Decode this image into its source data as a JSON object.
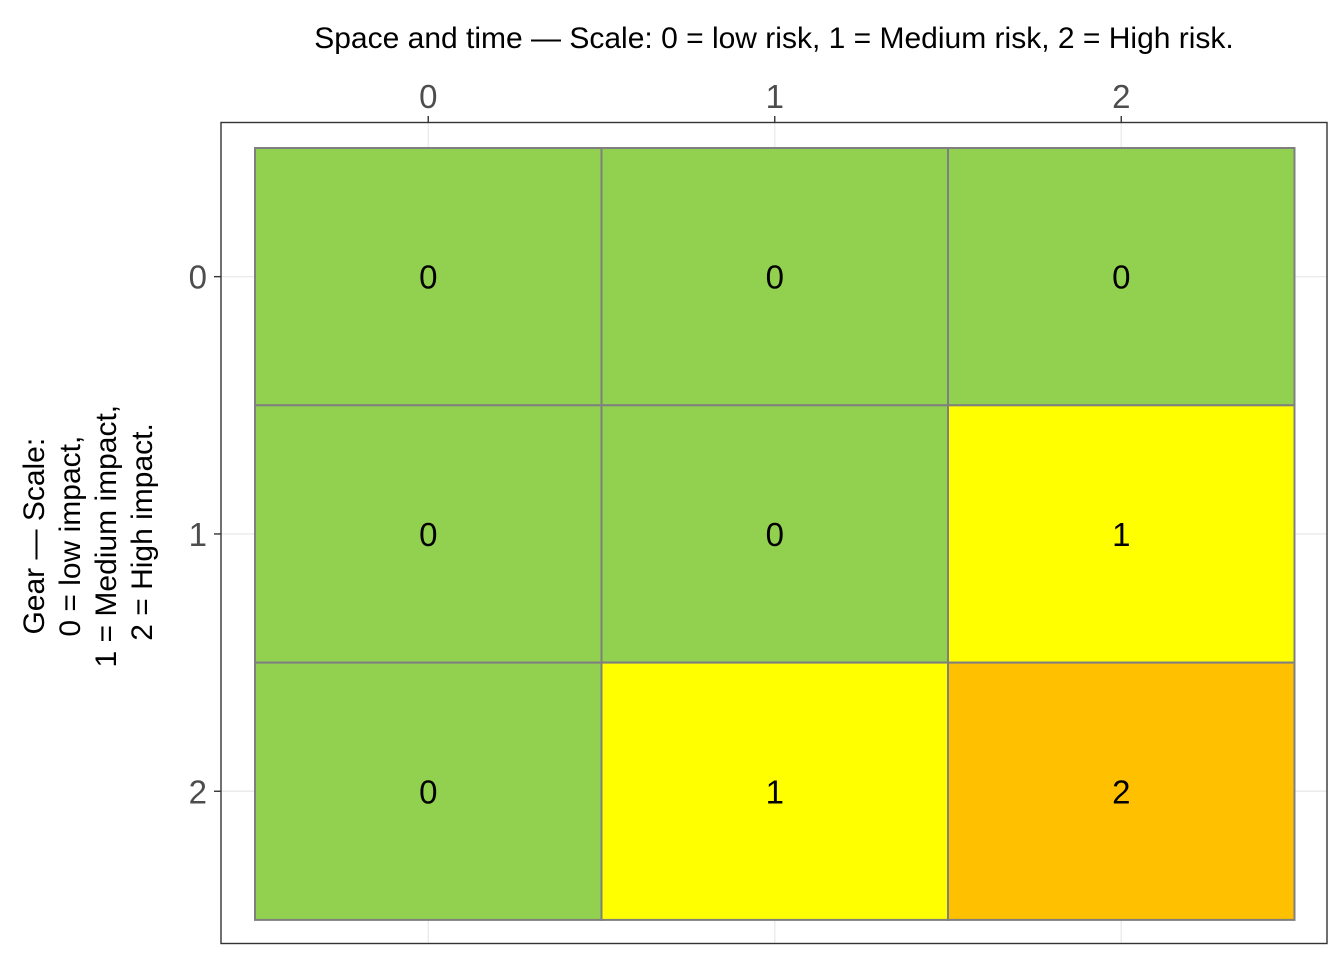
{
  "chart_data": {
    "type": "heatmap",
    "xlabel": "Space and time — Scale: 0 = low risk, 1 = Medium risk, 2 = High risk.",
    "ylabel_lines": [
      "Gear — Scale:",
      "0 = low impact,",
      "1 = Medium impact,",
      "2 = High impact."
    ],
    "x_categories": [
      "0",
      "1",
      "2"
    ],
    "y_categories": [
      "0",
      "1",
      "2"
    ],
    "values": [
      [
        0,
        0,
        0
      ],
      [
        0,
        0,
        1
      ],
      [
        0,
        1,
        2
      ]
    ],
    "colors": {
      "0": "#92d050",
      "1": "#ffff00",
      "2": "#ffc000"
    },
    "cell_border_color": "#7f7f7f",
    "grid": true,
    "x_axis_position": "top",
    "legend": "none"
  }
}
